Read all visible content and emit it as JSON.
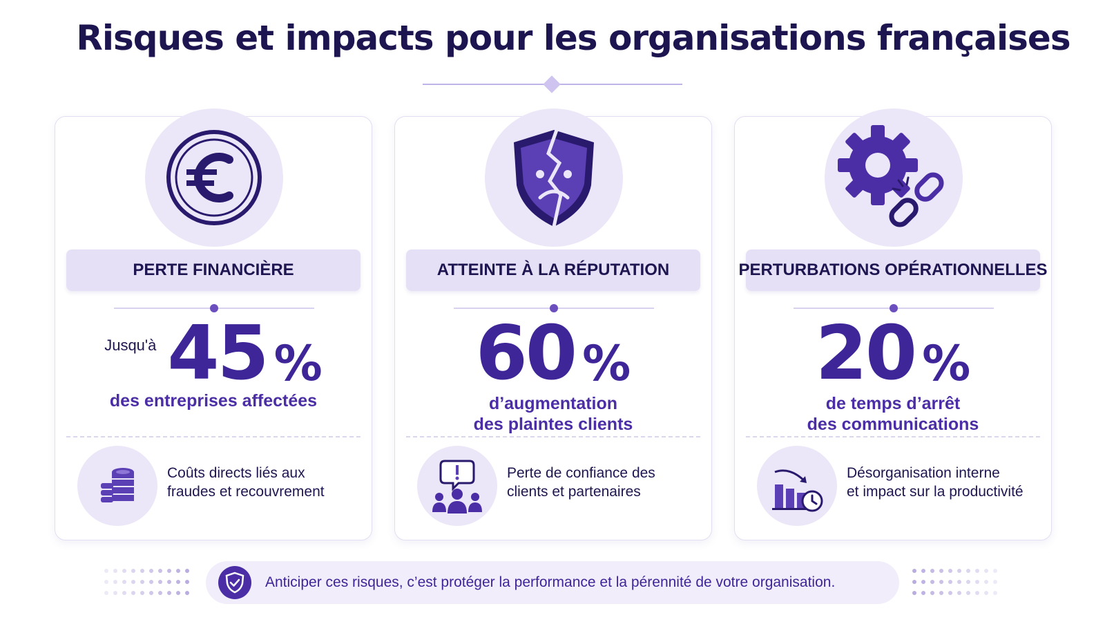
{
  "title": "Risques et impacts pour les organisations françaises",
  "cards": [
    {
      "icon": "euro-coin-icon",
      "label": "PERTE FINANCIÈRE",
      "prefix": "Jusqu'à",
      "value": "45",
      "unit": "%",
      "desc_line1": "des entreprises affectées",
      "desc_line2": "",
      "bottom_icon": "coin-stack-icon",
      "bottom_line1": "Coûts directs liés aux",
      "bottom_line2": "fraudes et recouvrement"
    },
    {
      "icon": "broken-shield-icon",
      "label": "ATTEINTE À LA RÉPUTATION",
      "prefix": "",
      "value": "60",
      "unit": "%",
      "desc_line1": "d’augmentation",
      "desc_line2": "des plaintes clients",
      "bottom_icon": "complaining-people-icon",
      "bottom_line1": "Perte de confiance des",
      "bottom_line2": "clients et partenaires"
    },
    {
      "icon": "gear-broken-chain-icon",
      "label": "PERTURBATIONS OPÉRATIONNELLES",
      "prefix": "",
      "value": "20",
      "unit": "%",
      "desc_line1": "de temps d’arrêt",
      "desc_line2": "des communications",
      "bottom_icon": "declining-chart-clock-icon",
      "bottom_line1": "Désorganisation interne",
      "bottom_line2": "et impact sur la productivité"
    }
  ],
  "banner": {
    "icon": "shield-check-icon",
    "text": "Anticiper ces risques, c’est protéger la performance et la pérennité de votre organisation."
  },
  "colors": {
    "primary": "#3e2598",
    "accent": "#4b2ea5",
    "title": "#1c1550",
    "light": "#ece7f8"
  }
}
